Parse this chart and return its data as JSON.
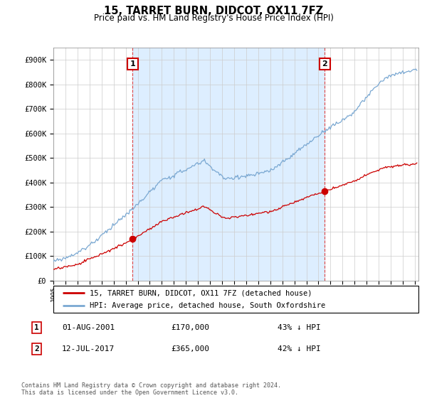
{
  "title": "15, TARRET BURN, DIDCOT, OX11 7FZ",
  "subtitle": "Price paid vs. HM Land Registry's House Price Index (HPI)",
  "legend_line1": "15, TARRET BURN, DIDCOT, OX11 7FZ (detached house)",
  "legend_line2": "HPI: Average price, detached house, South Oxfordshire",
  "annotation1_date": "01-AUG-2001",
  "annotation1_price": "£170,000",
  "annotation1_hpi": "43% ↓ HPI",
  "annotation2_date": "12-JUL-2017",
  "annotation2_price": "£365,000",
  "annotation2_hpi": "42% ↓ HPI",
  "footer": "Contains HM Land Registry data © Crown copyright and database right 2024.\nThis data is licensed under the Open Government Licence v3.0.",
  "price_color": "#cc0000",
  "hpi_color": "#7aa8d2",
  "shade_color": "#ddeeff",
  "vline_color": "#dd4444",
  "ylim": [
    0,
    950000
  ],
  "yticks": [
    0,
    100000,
    200000,
    300000,
    400000,
    500000,
    600000,
    700000,
    800000,
    900000
  ],
  "ytick_labels": [
    "£0",
    "£100K",
    "£200K",
    "£300K",
    "£400K",
    "£500K",
    "£600K",
    "£700K",
    "£800K",
    "£900K"
  ],
  "marker1_x": 2001.583,
  "marker1_y": 170000,
  "marker2_x": 2017.53,
  "marker2_y": 365000,
  "xlim_start": 1995.0,
  "xlim_end": 2025.3
}
